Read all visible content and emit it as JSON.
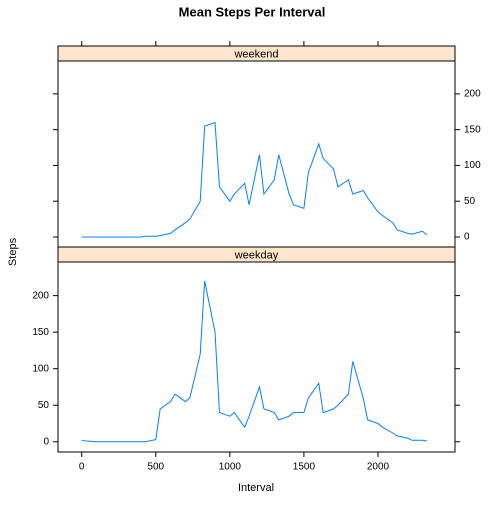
{
  "chart_data": {
    "type": "line",
    "title": "Mean Steps Per Interval",
    "xlabel": "Interval",
    "ylabel": "Steps",
    "x": [
      0,
      30,
      100,
      130,
      200,
      230,
      300,
      330,
      400,
      430,
      500,
      530,
      600,
      630,
      700,
      730,
      800,
      830,
      900,
      930,
      1000,
      1030,
      1100,
      1130,
      1200,
      1230,
      1300,
      1330,
      1400,
      1430,
      1500,
      1530,
      1600,
      1630,
      1700,
      1730,
      1800,
      1830,
      1900,
      1930,
      2000,
      2030,
      2100,
      2130,
      2200,
      2230,
      2300,
      2330
    ],
    "series": [
      {
        "name": "weekend",
        "color": "#0080ff",
        "values": [
          0,
          0,
          0,
          0,
          0,
          0,
          0,
          0,
          0,
          1,
          1,
          2,
          5,
          10,
          20,
          25,
          50,
          155,
          160,
          70,
          50,
          60,
          75,
          45,
          115,
          60,
          80,
          115,
          60,
          45,
          40,
          90,
          130,
          110,
          95,
          70,
          80,
          60,
          65,
          55,
          35,
          30,
          20,
          10,
          5,
          4,
          8,
          3
        ]
      },
      {
        "name": "weekday",
        "color": "#0080ff",
        "values": [
          2,
          1,
          0,
          0,
          0,
          0,
          0,
          0,
          0,
          0,
          3,
          45,
          55,
          65,
          55,
          60,
          120,
          220,
          150,
          40,
          35,
          40,
          20,
          35,
          75,
          45,
          40,
          30,
          35,
          40,
          40,
          60,
          80,
          40,
          45,
          50,
          65,
          110,
          60,
          30,
          25,
          20,
          12,
          8,
          5,
          2,
          2,
          1
        ]
      }
    ],
    "xlim": [
      -160,
      2520
    ],
    "ylim": [
      -14,
      246
    ],
    "xticks": [
      0,
      500,
      1000,
      1500,
      2000
    ],
    "yticks": [
      0,
      50,
      100,
      150,
      200
    ],
    "strip_color": "#ffe5cc",
    "grid": false
  }
}
